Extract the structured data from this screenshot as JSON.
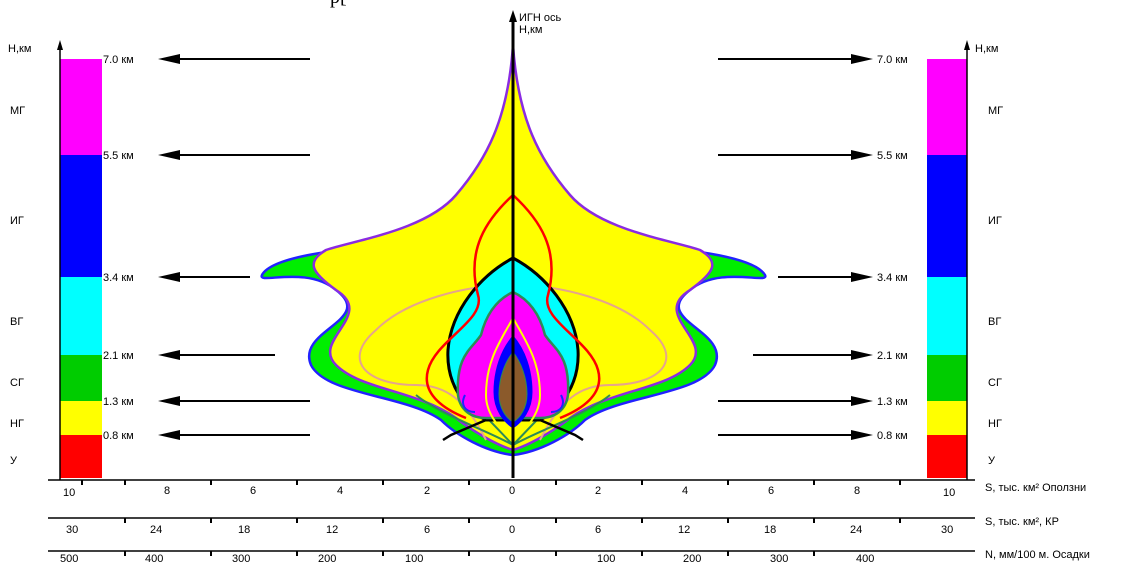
{
  "header_fragment": "р[",
  "axis": {
    "center_title": "ИГН ось",
    "center_unit": "Н,км",
    "left_unit": "Н,км",
    "right_unit": "Н,км"
  },
  "zones": [
    {
      "label": "У",
      "from_km": 0.0,
      "to_km": 0.8,
      "color": "#ff0000"
    },
    {
      "label": "НГ",
      "from_km": 0.8,
      "to_km": 1.3,
      "color": "#ffff00"
    },
    {
      "label": "СГ",
      "from_km": 1.3,
      "to_km": 2.1,
      "color": "#00cc00"
    },
    {
      "label": "ВГ",
      "from_km": 2.1,
      "to_km": 3.4,
      "color": "#00ffff"
    },
    {
      "label": "ИГ",
      "from_km": 3.4,
      "to_km": 5.5,
      "color": "#0000ff"
    },
    {
      "label": "МГ",
      "from_km": 5.5,
      "to_km": 7.0,
      "color": "#ff00ff"
    }
  ],
  "levels": [
    "0.8 км",
    "1.3 км",
    "2.1 км",
    "3.4 км",
    "5.5 км",
    "7.0 км"
  ],
  "scales": [
    {
      "label": "S, тыс. км² Оползни",
      "left": [
        "10",
        "8",
        "6",
        "4",
        "2",
        "0"
      ],
      "right": [
        "2",
        "4",
        "6",
        "8",
        "10"
      ]
    },
    {
      "label": "S, тыс. км², КР",
      "left": [
        "30",
        "24",
        "18",
        "12",
        "6",
        "0"
      ],
      "right": [
        "6",
        "12",
        "18",
        "24",
        "30"
      ]
    },
    {
      "label": "N, мм/100 м. Осадки",
      "left": [
        "500",
        "400",
        "300",
        "200",
        "100",
        "0"
      ],
      "right": [
        "100",
        "200",
        "300",
        "400"
      ]
    }
  ],
  "colors": {
    "outer_fill": "#00ee00",
    "outer_stroke": "#2222ff",
    "yellow_fill": "#ffff00",
    "purple_stroke": "#8a2be2",
    "cyan_fill": "#00ffff",
    "magenta_fill": "#ff00ff",
    "blue_fill": "#0000ff",
    "brown_fill": "#8b5a2b",
    "red_stroke": "#ff0000",
    "black_stroke": "#000000",
    "tan_stroke": "#e6a58c",
    "teal_stroke": "#2e8b57"
  }
}
